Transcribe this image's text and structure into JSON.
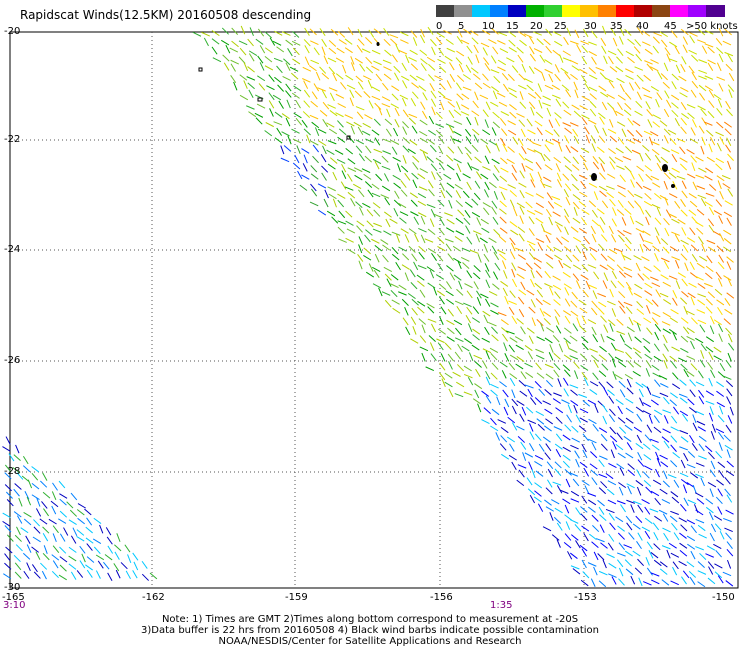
{
  "title": "Rapidscat Winds(12.5KM) 20160508 descending",
  "legend": {
    "labels": [
      "0",
      "5",
      "10",
      "15",
      "20",
      "25",
      "30",
      "35",
      "40",
      "45",
      ">50 knots"
    ],
    "colors": [
      "#404040",
      "#909090",
      "#00c8ff",
      "#0080ff",
      "#0000c0",
      "#00b000",
      "#30d030",
      "#ffff00",
      "#ffc000",
      "#ff8000",
      "#ff0000",
      "#b00000",
      "#8b4513",
      "#ff00ff",
      "#a000ff",
      "#500090"
    ]
  },
  "lat_labels": [
    "-20",
    "-22",
    "-24",
    "-26",
    "-28",
    "-30"
  ],
  "lon_labels": [
    "-165",
    "-162",
    "-159",
    "-156",
    "-153",
    "-150"
  ],
  "time_labels": [
    "3:10",
    "1:35"
  ],
  "notes": [
    "Note: 1) Times are GMT 2)Times along bottom correspond to measurement at -20S",
    "3)Data buffer is 22 hrs from 20160508 4) Black wind barbs indicate possible contamination",
    "NOAA/NESDIS/Center for Satellite Applications and Research"
  ]
}
